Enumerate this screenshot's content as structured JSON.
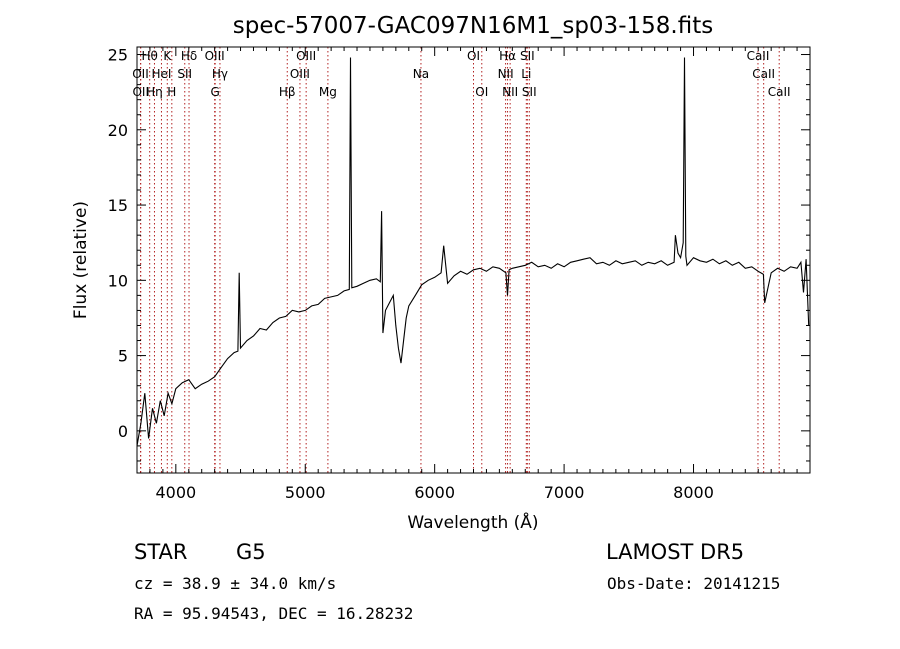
{
  "chart_data": {
    "type": "line",
    "title": "spec-57007-GAC097N16M1_sp03-158.fits",
    "xlabel": "Wavelength (Å)",
    "ylabel": "Flux (relative)",
    "xlim": [
      3700,
      8900
    ],
    "ylim": [
      -2.8,
      25.5
    ],
    "x_ticks": [
      4000,
      5000,
      6000,
      7000,
      8000
    ],
    "y_ticks": [
      0,
      5,
      10,
      15,
      20,
      25
    ],
    "grid": false,
    "line_color": "#000000",
    "marker_color": "#b22222",
    "series": [
      {
        "x": [
          3700,
          3730,
          3760,
          3790,
          3820,
          3850,
          3880,
          3910,
          3940,
          3970,
          4000,
          4050,
          4100,
          4150,
          4200,
          4250,
          4300,
          4350,
          4400,
          4450,
          4480,
          4490,
          4500,
          4550,
          4600,
          4650,
          4700,
          4750,
          4800,
          4850,
          4900,
          4950,
          5000,
          5050,
          5100,
          5150,
          5200,
          5250,
          5300,
          5340,
          5350,
          5360,
          5400,
          5450,
          5500,
          5550,
          5580,
          5590,
          5600,
          5620,
          5650,
          5680,
          5700,
          5720,
          5740,
          5760,
          5780,
          5800,
          5850,
          5900,
          5950,
          6000,
          6050,
          6070,
          6100,
          6150,
          6200,
          6250,
          6300,
          6350,
          6400,
          6450,
          6500,
          6550,
          6563,
          6575,
          6600,
          6650,
          6700,
          6750,
          6800,
          6850,
          6900,
          6950,
          7000,
          7050,
          7100,
          7150,
          7200,
          7250,
          7300,
          7350,
          7400,
          7450,
          7500,
          7550,
          7600,
          7650,
          7700,
          7750,
          7800,
          7850,
          7860,
          7880,
          7900,
          7920,
          7930,
          7940,
          7950,
          8000,
          8050,
          8100,
          8150,
          8200,
          8250,
          8300,
          8350,
          8400,
          8450,
          8500,
          8540,
          8550,
          8600,
          8650,
          8700,
          8750,
          8800,
          8830,
          8850,
          8870,
          8890
        ],
        "y": [
          -1.0,
          0.5,
          2.5,
          -0.5,
          1.5,
          0.5,
          2.0,
          1.0,
          2.5,
          1.8,
          2.8,
          3.2,
          3.4,
          2.8,
          3.1,
          3.3,
          3.6,
          4.2,
          4.8,
          5.2,
          5.3,
          10.5,
          5.5,
          6.0,
          6.3,
          6.8,
          6.7,
          7.2,
          7.5,
          7.6,
          8.0,
          7.9,
          8.0,
          8.3,
          8.4,
          8.8,
          8.9,
          9.0,
          9.3,
          9.4,
          24.8,
          9.5,
          9.6,
          9.8,
          10.0,
          10.1,
          9.9,
          14.6,
          6.5,
          8.0,
          8.5,
          9.0,
          7.0,
          5.5,
          4.5,
          6.0,
          7.5,
          8.3,
          9.0,
          9.7,
          10.0,
          10.2,
          10.5,
          12.3,
          9.8,
          10.3,
          10.6,
          10.4,
          10.7,
          10.8,
          10.6,
          10.9,
          10.8,
          10.5,
          9.0,
          10.7,
          10.8,
          10.9,
          11.0,
          11.2,
          10.9,
          11.0,
          10.8,
          11.1,
          10.9,
          11.2,
          11.3,
          11.4,
          11.5,
          11.1,
          11.2,
          11.0,
          11.3,
          11.1,
          11.2,
          11.3,
          11.0,
          11.2,
          11.1,
          11.3,
          11.0,
          11.2,
          13.0,
          11.8,
          11.5,
          12.5,
          24.8,
          11.6,
          11.0,
          11.5,
          11.3,
          11.2,
          11.4,
          11.1,
          11.3,
          11.0,
          11.2,
          10.8,
          10.9,
          10.6,
          10.4,
          8.5,
          10.5,
          10.8,
          10.6,
          10.9,
          10.8,
          11.2,
          9.2,
          11.4,
          7.0
        ]
      }
    ],
    "annotations": [
      {
        "name": "OII",
        "x": 3727,
        "row": 2
      },
      {
        "name": "OII",
        "x": 3729,
        "row": 3
      },
      {
        "name": "Hθ",
        "x": 3798,
        "row": 1
      },
      {
        "name": "Hη",
        "x": 3835,
        "row": 3
      },
      {
        "name": "HeI",
        "x": 3889,
        "row": 2
      },
      {
        "name": "K",
        "x": 3934,
        "row": 1
      },
      {
        "name": "H",
        "x": 3969,
        "row": 3
      },
      {
        "name": "SII",
        "x": 4069,
        "row": 2
      },
      {
        "name": "Hδ",
        "x": 4102,
        "row": 1
      },
      {
        "name": "OIII",
        "x": 4300,
        "row": 1
      },
      {
        "name": "Hγ",
        "x": 4341,
        "row": 2
      },
      {
        "name": "G",
        "x": 4304,
        "row": 3
      },
      {
        "name": "Hβ",
        "x": 4861,
        "row": 3
      },
      {
        "name": "OIII",
        "x": 4959,
        "row": 2
      },
      {
        "name": "OIII",
        "x": 5007,
        "row": 1
      },
      {
        "name": "Mg",
        "x": 5175,
        "row": 3
      },
      {
        "name": "Na",
        "x": 5894,
        "row": 2
      },
      {
        "name": "OI",
        "x": 6300,
        "row": 1
      },
      {
        "name": "OI",
        "x": 6364,
        "row": 3
      },
      {
        "name": "NII",
        "x": 6548,
        "row": 2
      },
      {
        "name": "Hα",
        "x": 6563,
        "row": 1
      },
      {
        "name": "NII",
        "x": 6583,
        "row": 3
      },
      {
        "name": "SII",
        "x": 6716,
        "row": 1
      },
      {
        "name": "Li",
        "x": 6708,
        "row": 2
      },
      {
        "name": "SII",
        "x": 6731,
        "row": 3
      },
      {
        "name": "CaII",
        "x": 8498,
        "row": 1
      },
      {
        "name": "CaII",
        "x": 8542,
        "row": 2
      },
      {
        "name": "CaII",
        "x": 8662,
        "row": 3
      }
    ]
  },
  "info": {
    "object_class": "STAR",
    "subclass": "G5",
    "survey": "LAMOST DR5",
    "redshift": "cz = 38.9 ± 34.0 km/s",
    "obs_date": "Obs-Date: 20141215",
    "coords": "RA =  95.94543, DEC =  16.28232"
  }
}
